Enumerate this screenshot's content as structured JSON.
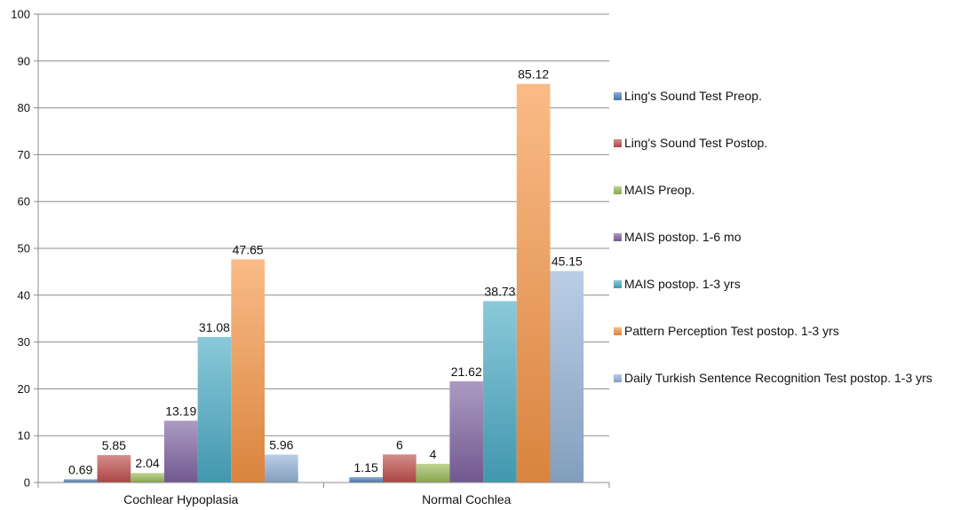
{
  "chart_data": {
    "type": "bar",
    "categories": [
      "Cochlear Hypoplasia",
      "Normal Cochlea"
    ],
    "series": [
      {
        "name": "Ling's Sound Test Preop.",
        "values": [
          0.69,
          1.15
        ],
        "labels": [
          "0.69",
          "1.15"
        ],
        "color": "#4f81bd"
      },
      {
        "name": "Ling's Sound Test Postop.",
        "values": [
          5.85,
          6
        ],
        "labels": [
          "5.85",
          "6"
        ],
        "color": "#c0504d"
      },
      {
        "name": "MAIS Preop.",
        "values": [
          2.04,
          4
        ],
        "labels": [
          "2.04",
          "4"
        ],
        "color": "#9bbb59"
      },
      {
        "name": "MAIS postop. 1-6 mo",
        "values": [
          13.19,
          21.62
        ],
        "labels": [
          "13.19",
          "21.62"
        ],
        "color": "#8064a2"
      },
      {
        "name": "MAIS postop. 1-3 yrs",
        "values": [
          31.08,
          38.73
        ],
        "labels": [
          "31.08",
          "38.73"
        ],
        "color": "#4bacc6"
      },
      {
        "name": "Pattern Perception Test postop. 1-3 yrs",
        "values": [
          47.65,
          85.12
        ],
        "labels": [
          "47.65",
          "85.12"
        ],
        "color": "#f79646"
      },
      {
        "name": "Daily Turkish Sentence Recognition Test postop. 1-3 yrs",
        "values": [
          5.96,
          45.15
        ],
        "labels": [
          "5.96",
          "45.15"
        ],
        "color": "#95b3d7"
      }
    ],
    "yticks": [
      "0",
      "10",
      "20",
      "30",
      "40",
      "50",
      "60",
      "70",
      "80",
      "90",
      "100"
    ],
    "ylim": [
      0,
      100
    ],
    "grid": true,
    "legend_position": "right"
  }
}
